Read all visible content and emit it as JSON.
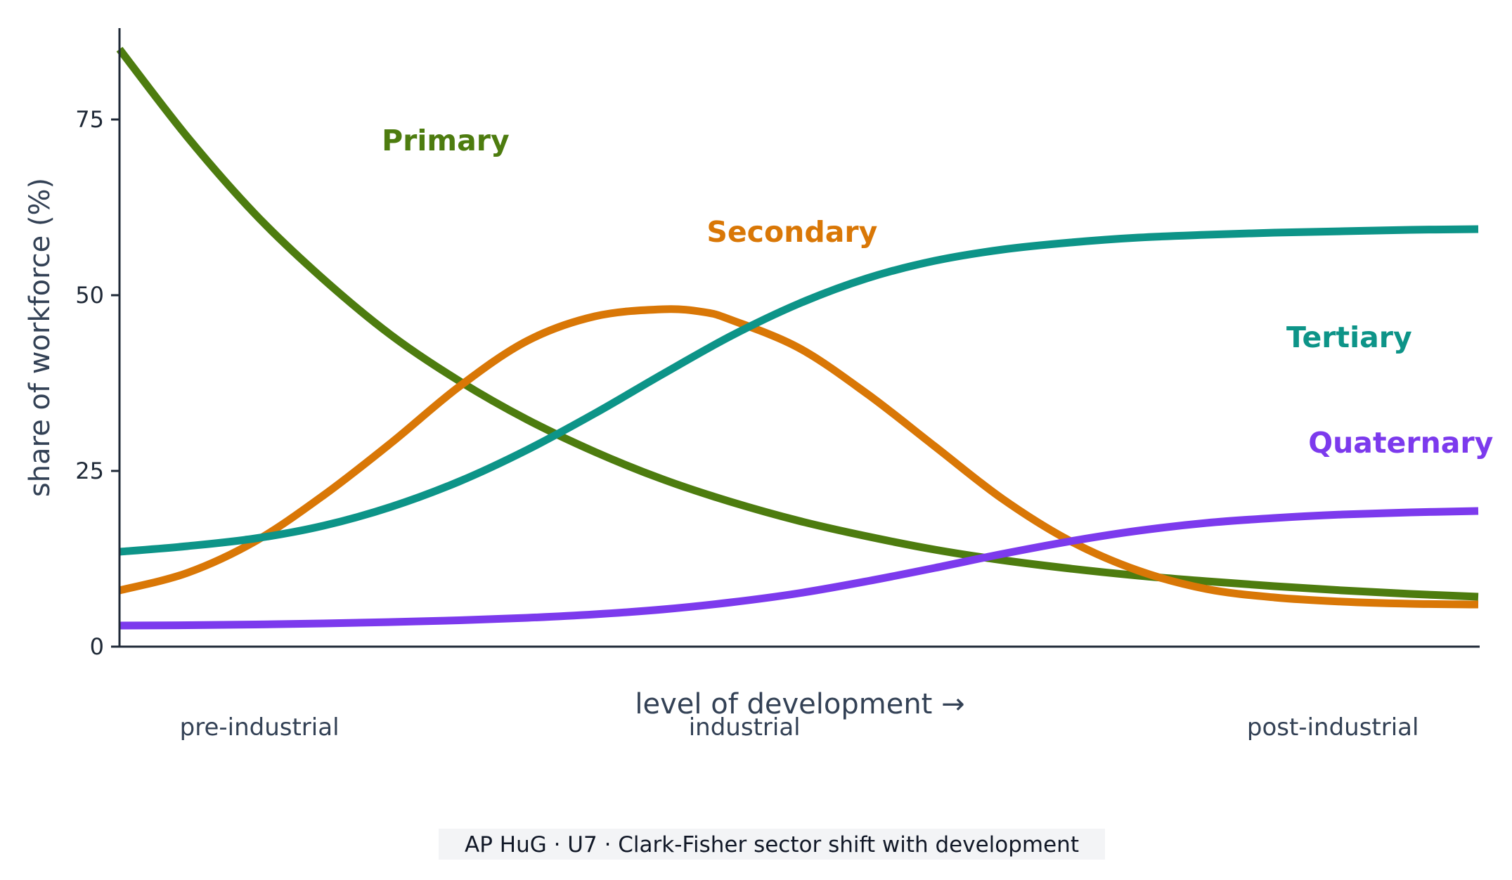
{
  "chart_data": {
    "type": "line",
    "xlabel": "level of development →",
    "ylabel": "share of workforce (%)",
    "xlim": [
      0,
      100
    ],
    "ylim": [
      0,
      88
    ],
    "yticks": [
      0,
      25,
      50,
      75
    ],
    "grid": false,
    "legend": "inline labels near curves",
    "x_stage_labels": [
      {
        "x": 10.3,
        "text": "pre-industrial"
      },
      {
        "x": 46,
        "text": "industrial"
      },
      {
        "x": 89.3,
        "text": "post-industrial"
      }
    ],
    "series": [
      {
        "name": "Primary",
        "color": "#4d7c0f",
        "label_at": {
          "x": 24,
          "y": 72
        },
        "x": [
          0,
          5,
          10,
          15,
          20,
          25,
          30,
          35,
          40,
          45,
          50,
          55,
          60,
          65,
          70,
          75,
          80,
          85,
          90,
          95,
          100
        ],
        "y": [
          85,
          72.5,
          61.5,
          52.3,
          44.3,
          37.8,
          32.3,
          27.7,
          23.8,
          20.6,
          17.9,
          15.7,
          13.8,
          12.3,
          11.1,
          10.1,
          9.3,
          8.6,
          8.0,
          7.5,
          7.1
        ]
      },
      {
        "name": "Secondary",
        "color": "#d97706",
        "label_at": {
          "x": 49.5,
          "y": 59
        },
        "x": [
          0,
          5,
          10,
          15,
          20,
          25,
          30,
          35,
          40,
          43,
          45,
          50,
          55,
          60,
          65,
          70,
          75,
          80,
          85,
          90,
          95,
          100
        ],
        "y": [
          8,
          10.5,
          15,
          21.5,
          29,
          37,
          43.5,
          47,
          48,
          47.6,
          46.5,
          42.5,
          36,
          28.5,
          21,
          15,
          10.8,
          8.2,
          7,
          6.4,
          6.1,
          6
        ]
      },
      {
        "name": "Tertiary",
        "color": "#0d9488",
        "label_at": {
          "x": 90.5,
          "y": 44
        },
        "x": [
          0,
          5,
          10,
          15,
          20,
          25,
          30,
          35,
          40,
          45,
          50,
          55,
          60,
          65,
          70,
          75,
          80,
          85,
          90,
          95,
          100
        ],
        "y": [
          13.5,
          14.3,
          15.4,
          17.2,
          19.9,
          23.5,
          28,
          33.2,
          38.8,
          44.2,
          48.8,
          52.4,
          54.9,
          56.5,
          57.5,
          58.2,
          58.6,
          58.9,
          59.1,
          59.3,
          59.4
        ]
      },
      {
        "name": "Quaternary",
        "color": "#7c3aed",
        "label_at": {
          "x": 94.3,
          "y": 29
        },
        "x": [
          0,
          5,
          10,
          15,
          20,
          25,
          30,
          35,
          40,
          45,
          50,
          55,
          60,
          65,
          70,
          75,
          80,
          85,
          90,
          95,
          100
        ],
        "y": [
          3,
          3.05,
          3.15,
          3.3,
          3.5,
          3.75,
          4.1,
          4.6,
          5.3,
          6.3,
          7.6,
          9.3,
          11.2,
          13.2,
          15,
          16.5,
          17.6,
          18.3,
          18.8,
          19.1,
          19.3
        ]
      }
    ]
  },
  "caption": "AP HuG · U7 · Clark-Fisher sector shift with development"
}
